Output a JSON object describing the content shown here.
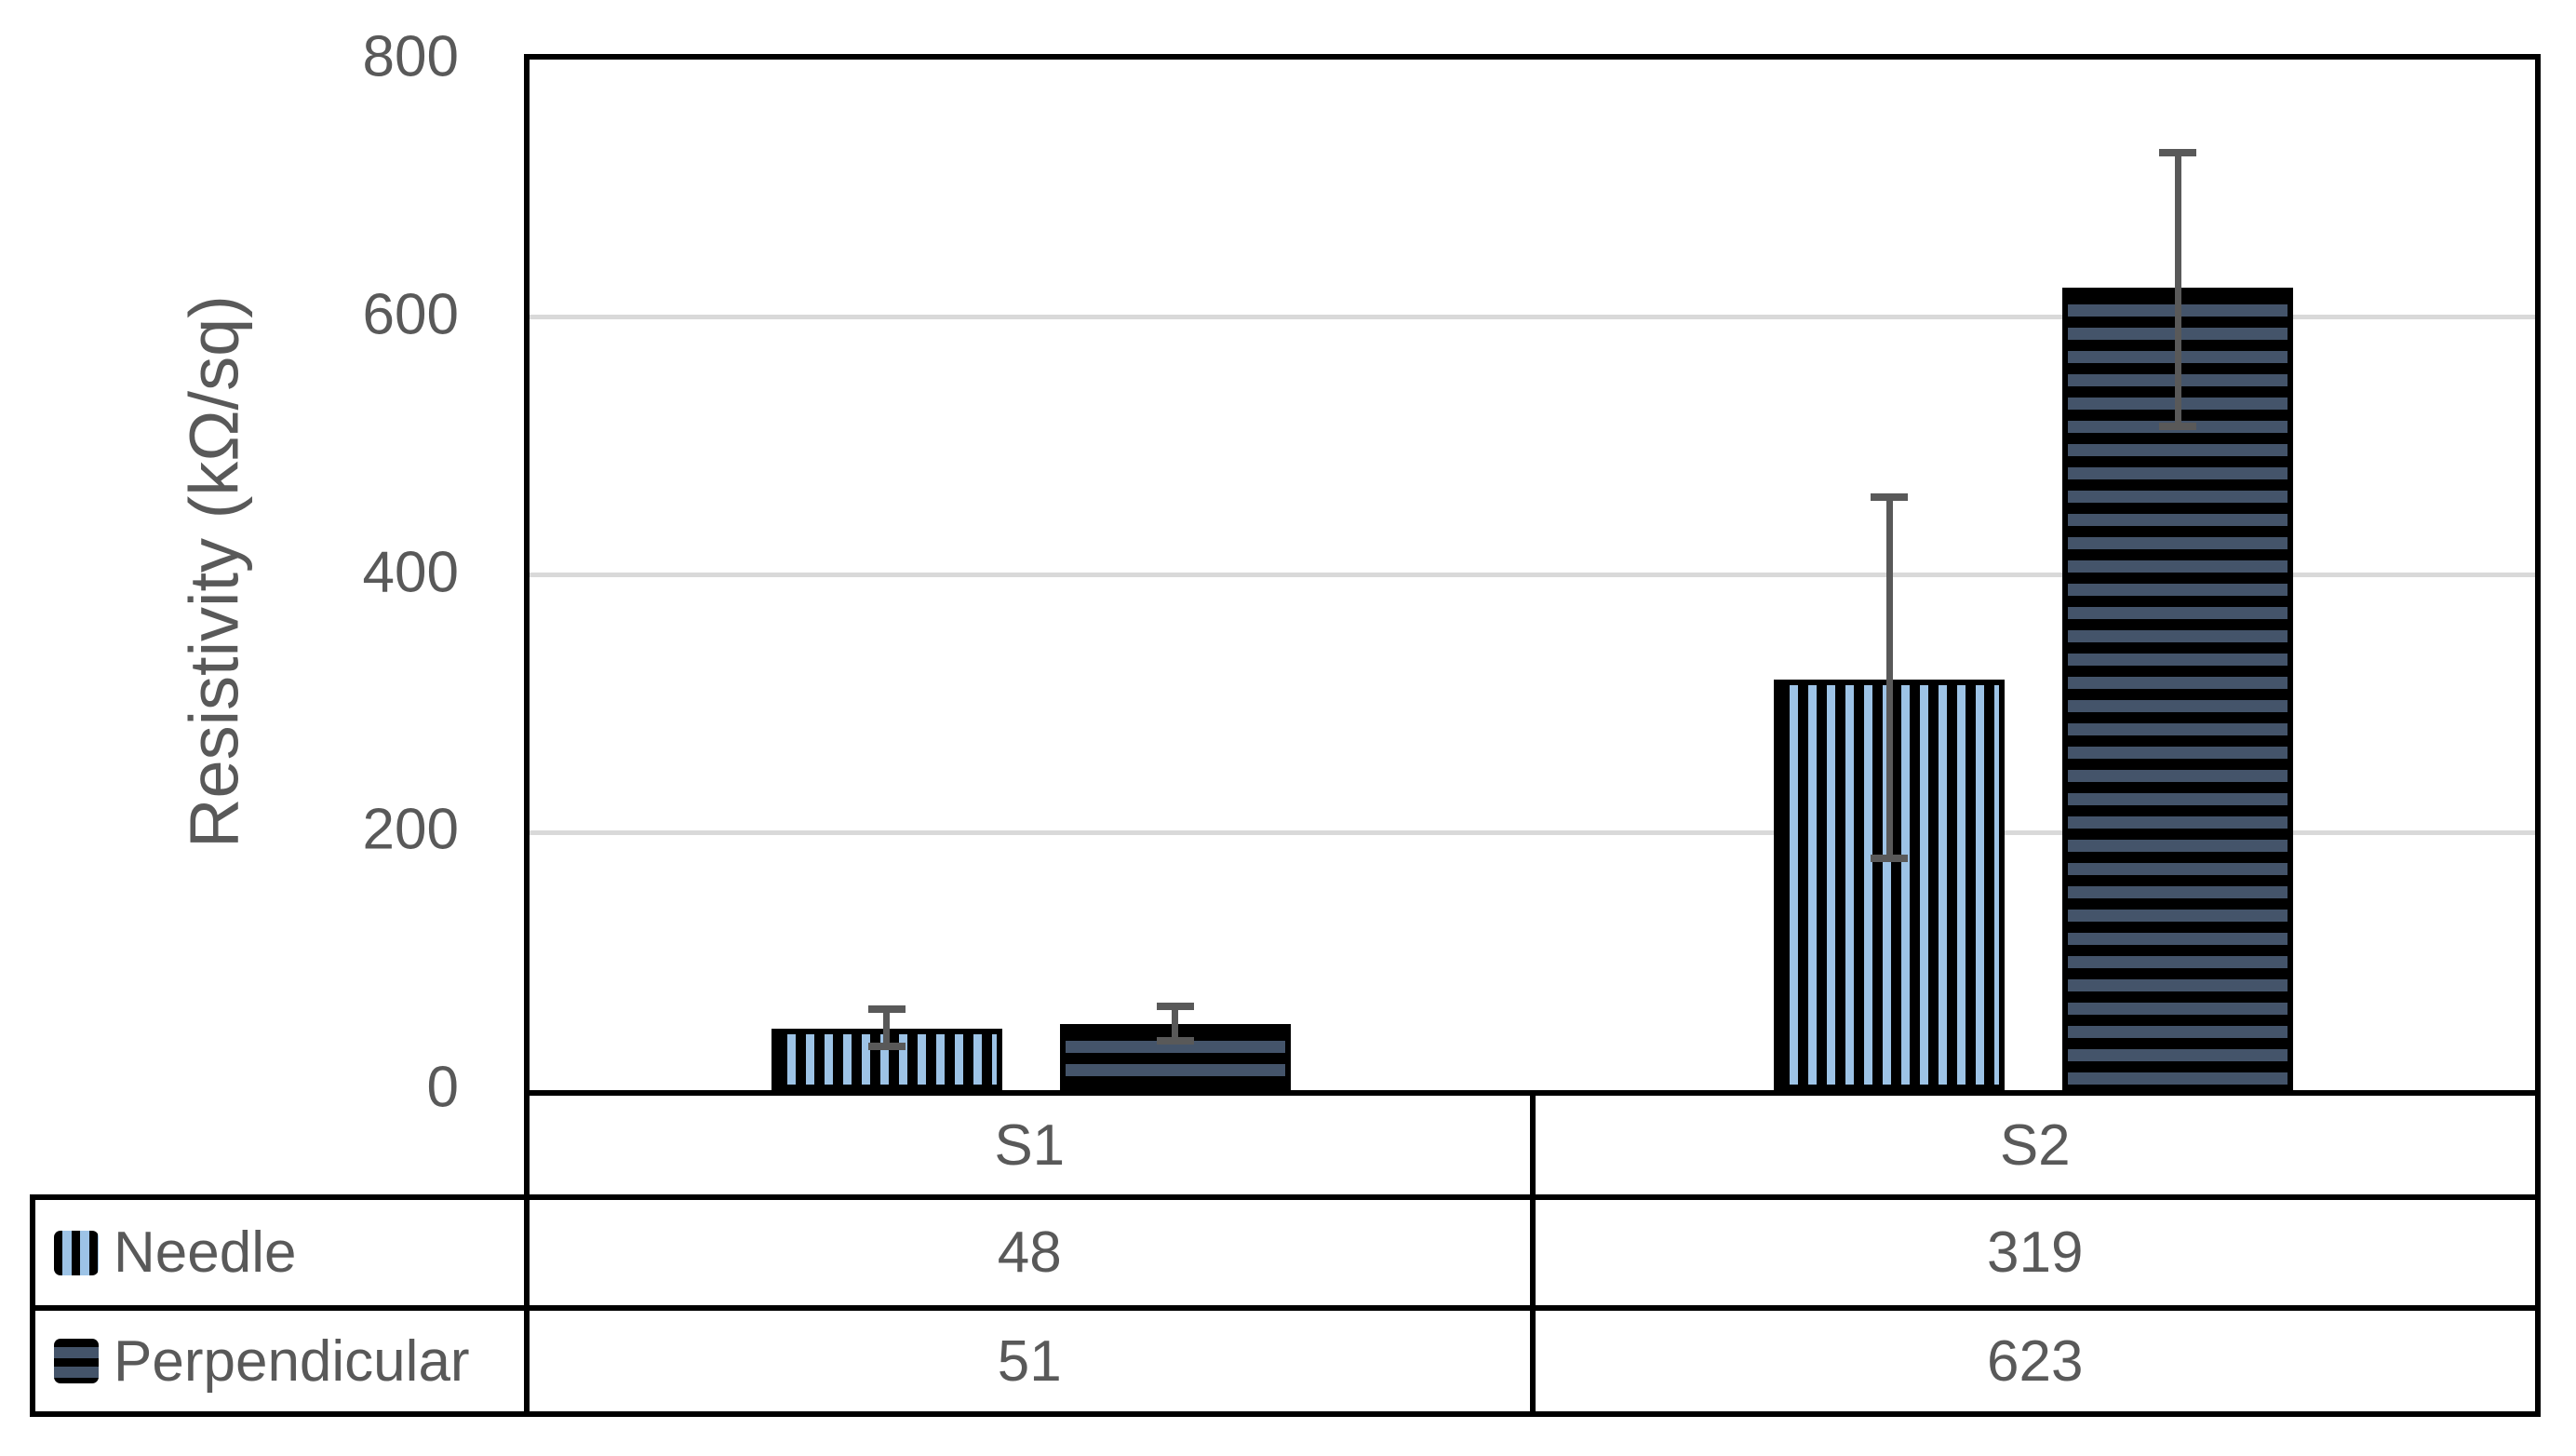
{
  "chart_data": {
    "type": "bar",
    "title": "",
    "ylabel": "Resistivity (kΩ/sq)",
    "xlabel": "",
    "categories": [
      "S1",
      "S2"
    ],
    "series": [
      {
        "name": "Needle",
        "values": [
          48,
          319
        ],
        "error_plus": [
          15,
          141
        ],
        "error_minus": [
          14,
          139
        ],
        "pattern": "vertical-stripes",
        "stripe_color": "#9DC3E6",
        "pattern_background": "#000000"
      },
      {
        "name": "Perpendicular",
        "values": [
          51,
          623
        ],
        "error_plus": [
          14,
          105
        ],
        "error_minus": [
          13,
          108
        ],
        "pattern": "horizontal-stripes",
        "stripe_color": "#44546A",
        "pattern_background": "#000000"
      }
    ],
    "ylim": [
      0,
      800
    ],
    "yticks": [
      0,
      200,
      400,
      600,
      800
    ],
    "grid": true,
    "legend_position": "bottom-left-table",
    "data_table_shown": true
  },
  "style": {
    "text_color": "#595959",
    "gridline_color": "#D9D9D9",
    "border_color": "#000000",
    "error_bar_color": "#595959",
    "background": "#FFFFFF"
  }
}
